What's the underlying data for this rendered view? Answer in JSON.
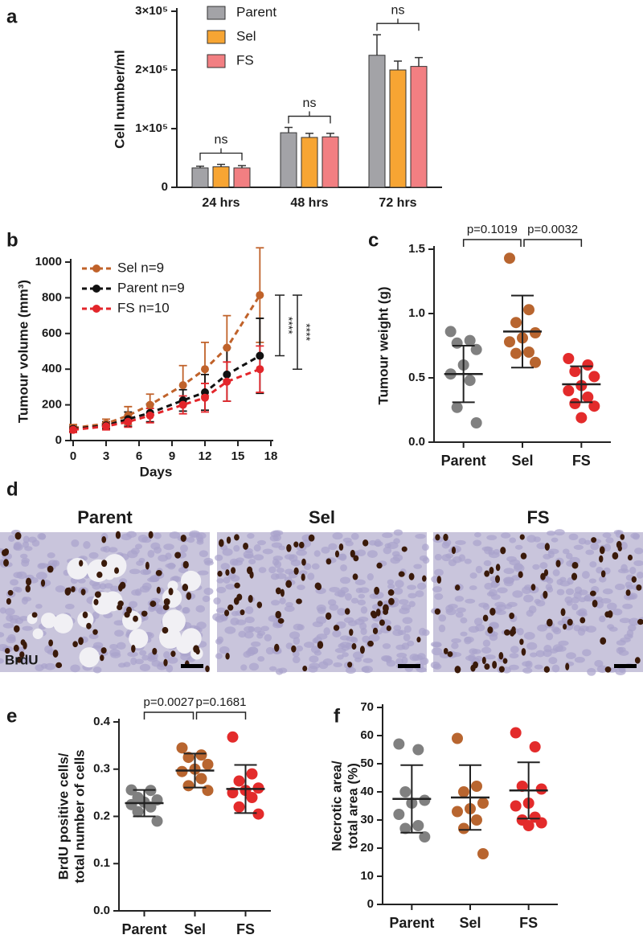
{
  "chart_data": [
    {
      "panel": "a",
      "type": "bar",
      "ylabel": "Cell number/ml",
      "categories": [
        "24 hrs",
        "48 hrs",
        "72 hrs"
      ],
      "series": [
        {
          "name": "Parent",
          "color": "#a3a3a7",
          "values": [
            33000,
            93000,
            225000
          ],
          "errors": [
            3000,
            9000,
            35000
          ]
        },
        {
          "name": "Sel",
          "color": "#f7a533",
          "values": [
            35000,
            85000,
            200000
          ],
          "errors": [
            4000,
            7000,
            15000
          ]
        },
        {
          "name": "FS",
          "color": "#f27f82",
          "values": [
            33000,
            86000,
            206000
          ],
          "errors": [
            4000,
            6000,
            15000
          ]
        }
      ],
      "annotations": [
        "ns",
        "ns",
        "ns"
      ],
      "ylim": [
        0,
        300000
      ],
      "yticks": [
        0,
        {
          "value": 100000,
          "label": "1×10⁵"
        },
        {
          "value": 200000,
          "label": "2×10⁵"
        },
        {
          "value": 300000,
          "label": "3×10⁵"
        }
      ]
    },
    {
      "panel": "b",
      "type": "line",
      "xlabel": "Days",
      "ylabel": "Tumour volume (mm³)",
      "x": [
        0,
        3,
        5,
        7,
        10,
        12,
        14,
        17
      ],
      "series": [
        {
          "name": "Sel n=9",
          "color": "#c0622a",
          "values": [
            70,
            95,
            140,
            200,
            310,
            400,
            520,
            815
          ],
          "errors": [
            20,
            25,
            50,
            60,
            110,
            150,
            180,
            265
          ]
        },
        {
          "name": "Parent n=9",
          "color": "#111111",
          "values": [
            65,
            85,
            120,
            155,
            225,
            270,
            370,
            475
          ],
          "errors": [
            15,
            20,
            40,
            50,
            60,
            100,
            150,
            210
          ]
        },
        {
          "name": "FS n=10",
          "color": "#e3262b",
          "values": [
            60,
            80,
            105,
            140,
            200,
            240,
            330,
            400
          ],
          "errors": [
            15,
            20,
            30,
            40,
            50,
            80,
            110,
            130
          ]
        }
      ],
      "comparisons": [
        {
          "series": [
            "Sel n=9",
            "Parent n=9"
          ],
          "label": "****"
        },
        {
          "series": [
            "Sel n=9",
            "FS n=10"
          ],
          "label": "****"
        }
      ],
      "legend": "upper left",
      "xlim": [
        0,
        18
      ],
      "xticks": [
        0,
        3,
        6,
        9,
        12,
        15,
        18
      ],
      "ylim": [
        0,
        1000
      ],
      "yticks": [
        0,
        200,
        400,
        600,
        800,
        1000
      ]
    },
    {
      "panel": "c",
      "type": "dot",
      "ylabel": "Tumour weight (g)",
      "categories": [
        "Parent",
        "Sel",
        "FS"
      ],
      "colors": [
        "#808080",
        "#b8652f",
        "#e32b2b"
      ],
      "points": [
        [
          0.86,
          0.79,
          0.77,
          0.72,
          0.6,
          0.53,
          0.48,
          0.27,
          0.15
        ],
        [
          1.43,
          1.03,
          0.93,
          0.85,
          0.81,
          0.78,
          0.7,
          0.69,
          0.62
        ],
        [
          0.65,
          0.6,
          0.55,
          0.51,
          0.44,
          0.4,
          0.35,
          0.3,
          0.28,
          0.19
        ]
      ],
      "mean": [
        0.53,
        0.86,
        0.45
      ],
      "sd": [
        0.22,
        0.28,
        0.14
      ],
      "comparisons": [
        {
          "groups": [
            "Parent",
            "Sel"
          ],
          "label": "p=0.1019"
        },
        {
          "groups": [
            "Sel",
            "FS"
          ],
          "label": "p=0.0032"
        }
      ],
      "ylim": [
        0,
        1.5
      ],
      "yticks": [
        {
          "value": 0,
          "label": "0.0"
        },
        0.5,
        {
          "value": 1,
          "label": "1.0"
        },
        1.5
      ]
    },
    {
      "panel": "e",
      "type": "dot",
      "ylabel": [
        "BrdU positive cells/",
        "total number of cells"
      ],
      "categories": [
        "Parent",
        "Sel",
        "FS"
      ],
      "colors": [
        "#808080",
        "#b8652f",
        "#e32b2b"
      ],
      "points": [
        [
          0.256,
          0.255,
          0.24,
          0.235,
          0.23,
          0.225,
          0.22,
          0.21,
          0.19
        ],
        [
          0.345,
          0.33,
          0.325,
          0.31,
          0.3,
          0.295,
          0.28,
          0.265,
          0.255
        ],
        [
          0.368,
          0.29,
          0.275,
          0.26,
          0.255,
          0.25,
          0.24,
          0.22,
          0.205
        ]
      ],
      "mean": [
        0.228,
        0.297,
        0.258
      ],
      "sd": [
        0.028,
        0.036,
        0.051
      ],
      "comparisons": [
        {
          "groups": [
            "Parent",
            "Sel"
          ],
          "label": "p=0.0027"
        },
        {
          "groups": [
            "Sel",
            "FS"
          ],
          "label": "p=0.1681"
        }
      ],
      "ylim": [
        0,
        0.4
      ],
      "yticks": [
        {
          "value": 0,
          "label": "0.0"
        },
        0.1,
        0.2,
        0.3,
        0.4
      ]
    },
    {
      "panel": "f",
      "type": "dot",
      "ylabel": [
        "Necrotic area/",
        "total area (%)"
      ],
      "categories": [
        "Parent",
        "Sel",
        "FS"
      ],
      "colors": [
        "#808080",
        "#b8652f",
        "#e32b2b"
      ],
      "points": [
        [
          57,
          55,
          40,
          37,
          36,
          32,
          28,
          27,
          24
        ],
        [
          59,
          42,
          40,
          36,
          34,
          33,
          30,
          27,
          18
        ],
        [
          61,
          56,
          42,
          41,
          36,
          35,
          31,
          30,
          29,
          28
        ]
      ],
      "mean": [
        37.5,
        38,
        40.5
      ],
      "sd": [
        12,
        11.5,
        10
      ],
      "ylim": [
        0,
        70
      ],
      "yticks": [
        0,
        10,
        20,
        30,
        40,
        50,
        60,
        70
      ]
    }
  ],
  "micrographs": {
    "panel": "d",
    "titles": [
      "Parent",
      "Sel",
      "FS"
    ],
    "stain": "BrdU"
  }
}
